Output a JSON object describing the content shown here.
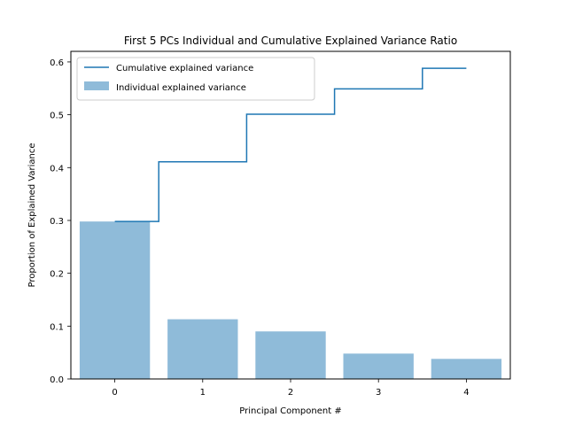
{
  "chart_data": {
    "type": "bar",
    "title": "First 5 PCs Individual and Cumulative Explained Variance Ratio",
    "xlabel": "Principal Component #",
    "ylabel": "Proportion of Explained Variance",
    "categories": [
      "0",
      "1",
      "2",
      "3",
      "4"
    ],
    "ylim": [
      0,
      0.62
    ],
    "yticks": [
      "0.0",
      "0.1",
      "0.2",
      "0.3",
      "0.4",
      "0.5",
      "0.6"
    ],
    "series": [
      {
        "name": "Individual explained variance",
        "type": "bar",
        "values": [
          0.298,
          0.113,
          0.09,
          0.048,
          0.038
        ],
        "color": "#8fbbd9"
      },
      {
        "name": "Cumulative explained variance",
        "type": "step",
        "values": [
          0.298,
          0.411,
          0.501,
          0.549,
          0.588
        ],
        "color": "#1f77b4"
      }
    ],
    "legend_position": "top-left",
    "grid": false
  }
}
